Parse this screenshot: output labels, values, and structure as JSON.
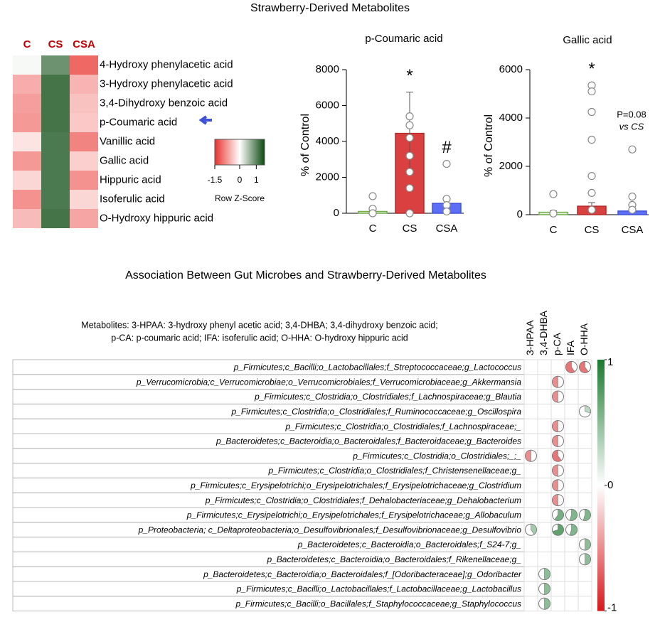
{
  "titles": {
    "top": "Strawberry-Derived Metabolites",
    "bottom": "Association Between Gut Microbes and Strawberry-Derived Metabolites"
  },
  "chart_data": [
    {
      "type": "heatmap",
      "columns": [
        "C",
        "CS",
        "CSA"
      ],
      "rows": [
        "4-Hydroxy phenylacetic acid",
        "3-Hydroxy phenylacetic acid",
        "3,4-Dihydroxy benzoic acid",
        "p-Coumaric acid",
        "Vanillic acid",
        "Gallic acid",
        "Hippuric acid",
        "Isoferulic acid",
        "O-Hydroxy hippuric acid"
      ],
      "values": [
        [
          0.05,
          0.9,
          -1.1
        ],
        [
          -0.6,
          1.15,
          -0.55
        ],
        [
          -0.7,
          1.15,
          -0.45
        ],
        [
          -0.75,
          1.15,
          -0.4
        ],
        [
          -0.2,
          1.1,
          -0.9
        ],
        [
          -0.75,
          1.1,
          -0.35
        ],
        [
          -0.3,
          1.1,
          -0.8
        ],
        [
          -0.8,
          1.1,
          -0.3
        ],
        [
          -0.5,
          1.15,
          -0.65
        ]
      ],
      "colors": [
        "#e8322c",
        "#ffffff",
        "#0b4a10"
      ],
      "zlim": [
        -1.5,
        1.5
      ],
      "zticks": [
        -1.5,
        0,
        1
      ],
      "colorbar_label": "Row Z-Score"
    },
    {
      "type": "bar",
      "title": "p-Coumaric acid",
      "ylabel": "% of Control",
      "categories": [
        "C",
        "CS",
        "CSA"
      ],
      "values": [
        100,
        4450,
        550
      ],
      "errors": [
        80,
        2300,
        250
      ],
      "points": [
        [
          950,
          250,
          0
        ],
        [
          5400,
          4900,
          4200,
          3200,
          2300,
          1400,
          0
        ],
        [
          2750,
          800,
          450,
          100
        ]
      ],
      "colors": [
        "#e2f0d9",
        "#d9403f",
        "#5b6ef5"
      ],
      "edge_colors": [
        "#70ad47",
        "#b52a2a",
        "#3f52d8"
      ],
      "annotations": [
        null,
        "*",
        "#"
      ],
      "ylim": [
        0,
        8000
      ],
      "yticks": [
        0,
        2000,
        4000,
        6000,
        8000
      ]
    },
    {
      "type": "bar",
      "title": "Gallic acid",
      "ylabel": "% of Control",
      "categories": [
        "C",
        "CS",
        "CSA"
      ],
      "values": [
        100,
        350,
        150
      ],
      "errors": [
        60,
        150,
        80
      ],
      "points": [
        [
          850,
          50
        ],
        [
          5350,
          5100,
          4250,
          3100,
          1600,
          900,
          200
        ],
        [
          2700,
          750,
          400,
          200
        ]
      ],
      "colors": [
        "#e2f0d9",
        "#d9403f",
        "#5b6ef5"
      ],
      "edge_colors": [
        "#70ad47",
        "#b52a2a",
        "#3f52d8"
      ],
      "annotations": [
        null,
        "*",
        null
      ],
      "note": [
        "P=0.08",
        "vs CS"
      ],
      "ylim": [
        0,
        6000
      ],
      "yticks": [
        0,
        2000,
        4000,
        6000
      ]
    },
    {
      "type": "corrplot",
      "note": [
        "Metabolites: 3-HPAA: 3-hydroxy phenyl acetic acid; 3,4-DHBA; 3,4-dihydroxy benzoic acid;",
        "p-CA: p-coumaric acid; IFA: isoferulic acid; O-HHA: O-hydroxy hippuric acid"
      ],
      "columns": [
        "3-HPAA",
        "3,4-DHBA",
        "p-CA",
        "IFA",
        "O-HHA"
      ],
      "rows": [
        "p_Firmicutes;c_Bacilli;o_Lactobacillales;f_Streptococcaceae;g_Lactococcus",
        "p_Verrucomicrobia;c_Verrucomicrobiae;o_Verrucomicrobiales;f_Verrucomicrobiaceae;g_Akkermansia",
        "p_Firmicutes;c_Clostridia;o_Clostridiales;f_Lachnospiraceae;g_Blautia",
        "p_Firmicutes;c_Clostridia;o_Clostridiales;f_Ruminococcaceae;g_Oscillospira",
        "p_Firmicutes;c_Clostridia;o_Clostridiales;f_Lachnospiraceae;_",
        "p_Bacteroidetes;c_Bacteroidia;o_Bacteroidales;f_Bacteroidaceae;g_Bacteroides",
        "p_Firmicutes;c_Clostridia;o_Clostridiales;_;_",
        "p_Firmicutes;c_Clostridia;o_Clostridiales;f_Christensenellaceae;g_",
        "p_Firmicutes;c_Erysipelotrichi;o_Erysipelotrichales;f_Erysipelotrichaceae;g_Clostridium",
        "p_Firmicutes;c_Clostridia;o_Clostridiales;f_Dehalobacteriaceae;g_Dehalobacterium",
        "p_Firmicutes;c_Erysipelotrichi;o_Erysipelotrichales;f_Erysipelotrichaceae;g_Allobaculum",
        "p_Proteobacteria; c_Deltaproteobacteria;o_Desulfovibrionales;f_Desulfovibrionaceae;g_Desulfovibrio",
        "p_Bacteroidetes;c_Bacteroidia;o_Bacteroidales;f_S24-7;g_",
        "p_Bacteroidetes;c_Bacteroidia;o_Bacteroidales;f_Rikenellaceae;g_",
        "p_Bacteroidetes;c_Bacteroidia;o_Bacteroidales;f_[Odoribacteraceae];g_Odoribacter",
        "p_Firmicutes;c_Bacilli;o_Lactobacillales;f_Lactobacillaceae;g_Lactobacillus",
        "p_Firmicutes;c_Bacilli;o_Bacillales;f_Staphylococcaceae;g_Staphylococcus"
      ],
      "values": [
        [
          null,
          null,
          null,
          -0.6,
          -0.6
        ],
        [
          null,
          null,
          -0.5,
          null,
          null
        ],
        [
          null,
          null,
          -0.5,
          null,
          null
        ],
        [
          null,
          null,
          null,
          null,
          0.3
        ],
        [
          null,
          null,
          -0.5,
          null,
          null
        ],
        [
          null,
          null,
          -0.5,
          null,
          null
        ],
        [
          -0.5,
          null,
          -0.6,
          null,
          null
        ],
        [
          null,
          null,
          -0.5,
          null,
          null
        ],
        [
          null,
          null,
          -0.5,
          null,
          null
        ],
        [
          null,
          null,
          -0.5,
          null,
          null
        ],
        [
          null,
          null,
          0.6,
          0.55,
          0.55
        ],
        [
          0.4,
          null,
          0.7,
          0.55,
          null
        ],
        [
          null,
          null,
          null,
          null,
          0.5
        ],
        [
          null,
          null,
          null,
          null,
          0.5
        ],
        [
          null,
          0.5,
          null,
          null,
          null
        ],
        [
          null,
          0.5,
          null,
          null,
          null
        ],
        [
          null,
          0.5,
          null,
          null,
          null
        ]
      ],
      "colors": [
        "#d7191c",
        "#ffffff",
        "#1a7a2e"
      ],
      "zlim": [
        -1,
        1
      ],
      "zticks": [
        -1,
        0,
        1
      ]
    }
  ]
}
